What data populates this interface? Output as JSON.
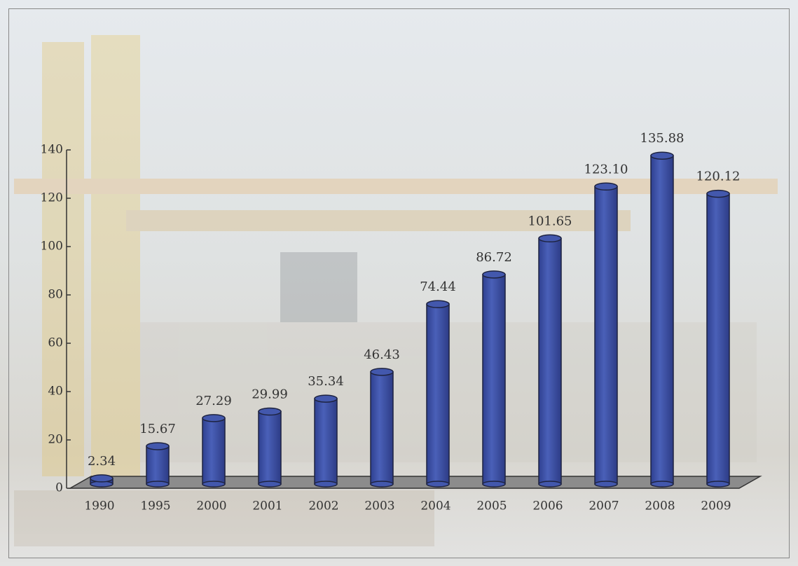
{
  "chart_data": {
    "type": "bar",
    "categories": [
      "1990",
      "1995",
      "2000",
      "2001",
      "2002",
      "2003",
      "2004",
      "2005",
      "2006",
      "2007",
      "2008",
      "2009"
    ],
    "values": [
      2.34,
      15.67,
      27.29,
      29.99,
      35.34,
      46.43,
      74.44,
      86.72,
      101.65,
      123.1,
      135.88,
      120.12
    ],
    "value_labels": [
      "2.34",
      "15.67",
      "27.29",
      "29.99",
      "35.34",
      "46.43",
      "74.44",
      "86.72",
      "101.65",
      "123.10",
      "135.88",
      "120.12"
    ],
    "color": "#4358ad",
    "ylim": [
      0,
      140
    ],
    "yticks": [
      0,
      20,
      40,
      60,
      80,
      100,
      120,
      140
    ]
  }
}
